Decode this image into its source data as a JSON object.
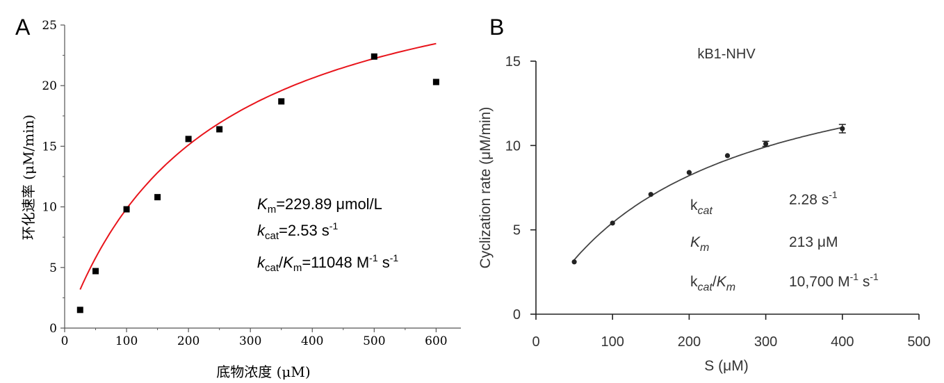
{
  "chart_data": [
    {
      "panel": "A",
      "type": "scatter",
      "xlabel": "底物浓度 (μM)",
      "ylabel": "环化速率 (μM/min)",
      "xlim": [
        0,
        640
      ],
      "ylim": [
        0,
        25
      ],
      "xticks": [
        0,
        100,
        200,
        300,
        400,
        500,
        600
      ],
      "yticks": [
        0,
        5,
        10,
        15,
        20,
        25
      ],
      "series": [
        {
          "name": "data",
          "x": [
            25,
            50,
            100,
            150,
            200,
            250,
            350,
            500,
            600
          ],
          "y": [
            1.5,
            4.7,
            9.8,
            10.8,
            15.6,
            16.4,
            18.7,
            22.4,
            20.3
          ]
        },
        {
          "name": "fit",
          "kind": "michaelis-menten",
          "vmax": 32.46,
          "km": 229.89,
          "x_range": [
            25,
            600
          ],
          "color": "#e8141b"
        }
      ],
      "annotations": [
        {
          "var": "K",
          "sub": "m",
          "value": "=229.89 μmol/L"
        },
        {
          "var": "k",
          "sub": "cat",
          "value": "=2.53 s",
          "sup": "-1"
        },
        {
          "var": "k",
          "sub": "cat",
          "sep": "/",
          "var2": "K",
          "sub2": "m",
          "value": "=11048 M",
          "sup": "-1",
          "value2": " s",
          "sup2": "-1"
        }
      ]
    },
    {
      "panel": "B",
      "type": "scatter",
      "title": "kB1-NHV",
      "xlabel": "S (μM)",
      "ylabel": "Cyclization rate (μM/min)",
      "xlim": [
        0,
        500
      ],
      "ylim": [
        0,
        15
      ],
      "xticks": [
        0,
        100,
        200,
        300,
        400,
        500
      ],
      "yticks": [
        0,
        5,
        10,
        15
      ],
      "series": [
        {
          "name": "data",
          "x": [
            50,
            100,
            150,
            200,
            250,
            300,
            400
          ],
          "y": [
            3.1,
            5.4,
            7.1,
            8.4,
            9.4,
            10.1,
            11.0
          ],
          "error": [
            0,
            0,
            0,
            0,
            0,
            0.15,
            0.25
          ]
        },
        {
          "name": "fit",
          "kind": "michaelis-menten",
          "vmax": 16.96,
          "km": 213,
          "x_range": [
            50,
            400
          ],
          "color": "#444444"
        }
      ],
      "params": [
        {
          "var": "k",
          "sub": "cat",
          "value": "2.28 s",
          "sup": "-1"
        },
        {
          "var": "K",
          "sub": "m",
          "value": "213 μM"
        },
        {
          "var": "k",
          "sub": "cat",
          "sep": "/",
          "var2": "K",
          "sub2": "m",
          "value": "10,700 M",
          "sup": "-1",
          "value2": " s",
          "sup2": "-1"
        }
      ]
    }
  ],
  "panel_labels": [
    "A",
    "B"
  ]
}
